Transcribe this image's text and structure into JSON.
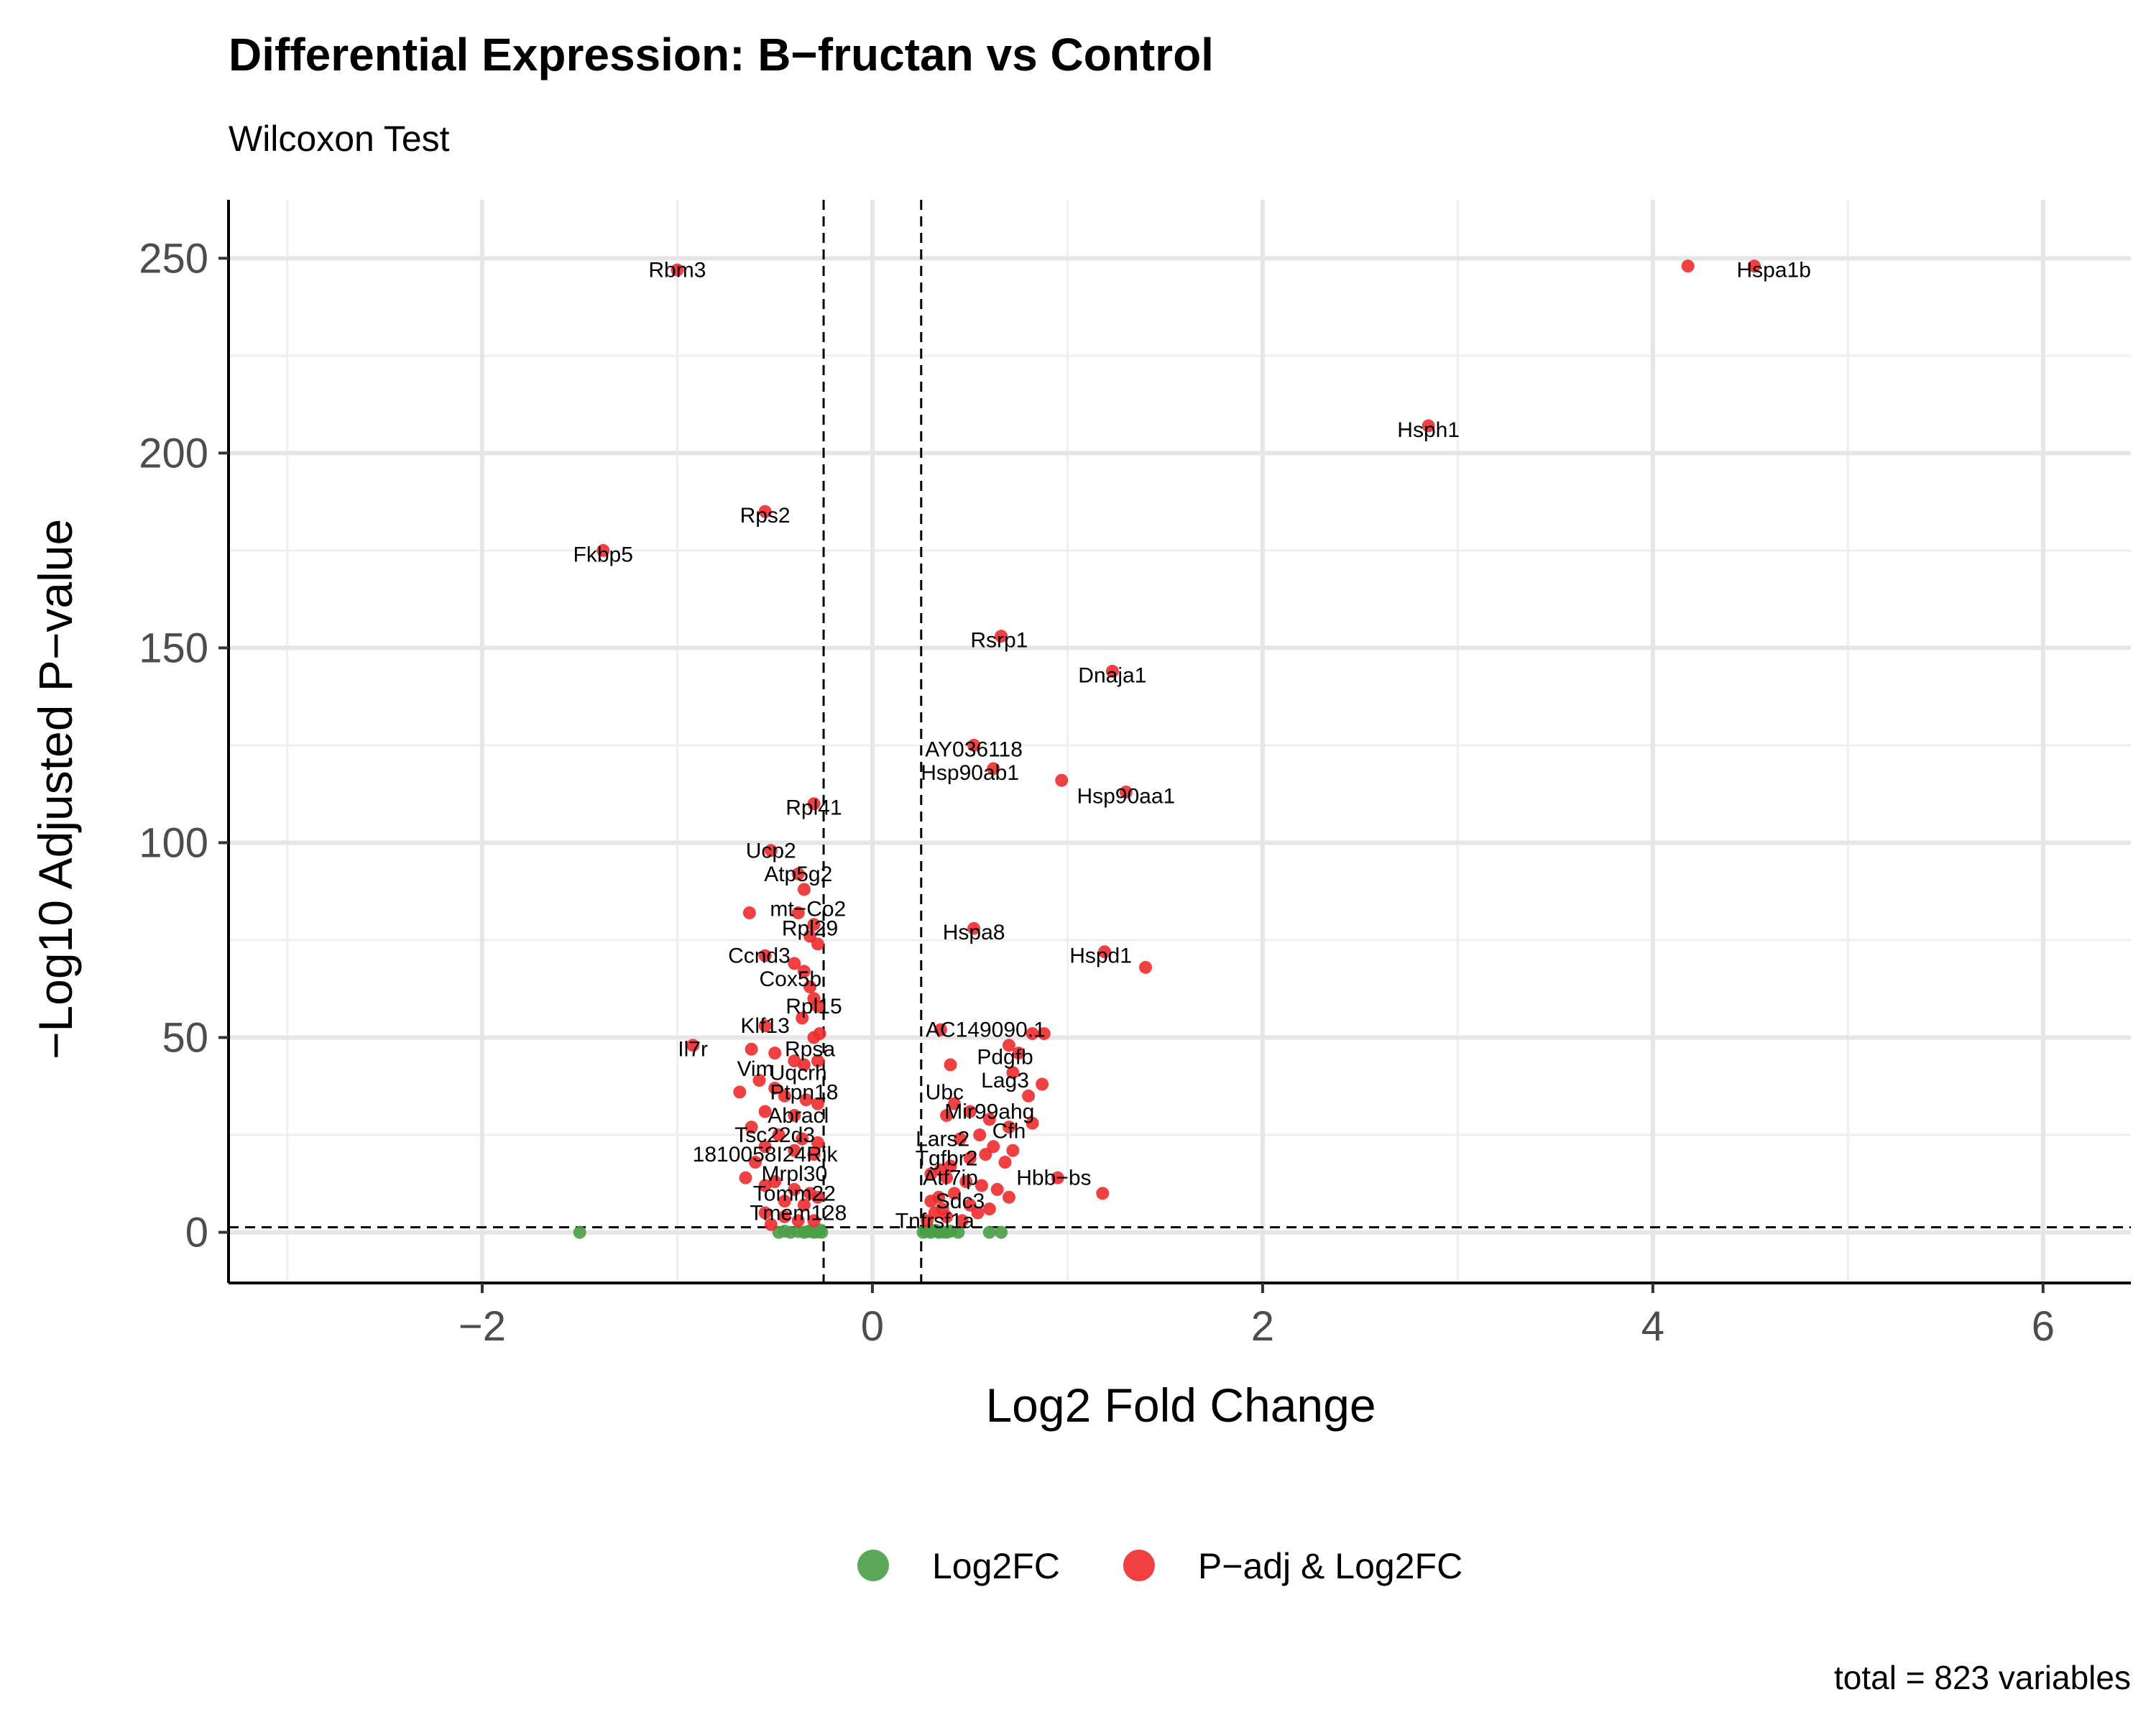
{
  "chart_data": {
    "type": "scatter",
    "title": "Differential Expression: B−fructan vs Control",
    "subtitle": "Wilcoxon Test",
    "xlabel": "Log2 Fold Change",
    "ylabel": "−Log10 Adjusted P−value",
    "xlim": [
      -3.3,
      6.45
    ],
    "ylim": [
      -13,
      265
    ],
    "x_ticks": [
      -2,
      0,
      2,
      4,
      6
    ],
    "x_tick_labels": [
      "−2",
      "0",
      "2",
      "4",
      "6"
    ],
    "y_ticks": [
      0,
      50,
      100,
      150,
      200,
      250
    ],
    "y_tick_labels": [
      "0",
      "50",
      "100",
      "150",
      "200",
      "250"
    ],
    "thresholds": {
      "fc_low": -0.25,
      "fc_high": 0.25,
      "padj_line": 1.3
    },
    "grid": true,
    "legend_position": "bottom",
    "caption": "total = 823 variables",
    "series": [
      {
        "name": "Log2FC",
        "color": "#4a9e47",
        "points": [
          [
            -1.5,
            0
          ],
          [
            -0.48,
            0
          ],
          [
            -0.45,
            0.3
          ],
          [
            -0.42,
            0
          ],
          [
            -0.38,
            0.2
          ],
          [
            -0.35,
            0
          ],
          [
            -0.32,
            0.4
          ],
          [
            -0.3,
            0
          ],
          [
            -0.28,
            0.1
          ],
          [
            -0.26,
            0
          ],
          [
            -0.27,
            0.6
          ],
          [
            -0.33,
            0.2
          ],
          [
            0.26,
            0
          ],
          [
            0.28,
            0.2
          ],
          [
            0.3,
            0
          ],
          [
            0.32,
            0.5
          ],
          [
            0.34,
            0
          ],
          [
            0.36,
            0.1
          ],
          [
            0.38,
            0
          ],
          [
            0.4,
            0.3
          ],
          [
            0.29,
            0.8
          ],
          [
            0.33,
            0.4
          ],
          [
            0.44,
            0
          ],
          [
            0.6,
            0
          ],
          [
            0.66,
            0
          ]
        ]
      },
      {
        "name": "P−adj & Log2FC",
        "color": "#f02b2e",
        "points": [
          [
            -1.0,
            247
          ],
          [
            4.18,
            248
          ],
          [
            4.52,
            248
          ],
          [
            2.85,
            207
          ],
          [
            -0.55,
            185
          ],
          [
            -1.38,
            175
          ],
          [
            0.66,
            153
          ],
          [
            1.23,
            144
          ],
          [
            0.52,
            125
          ],
          [
            0.97,
            116
          ],
          [
            1.3,
            113
          ],
          [
            0.62,
            119
          ],
          [
            -0.3,
            110
          ],
          [
            -0.52,
            98
          ],
          [
            -0.38,
            92
          ],
          [
            -0.35,
            88
          ],
          [
            -0.63,
            82
          ],
          [
            -0.38,
            82
          ],
          [
            -0.3,
            79
          ],
          [
            -0.32,
            76
          ],
          [
            -0.28,
            74
          ],
          [
            0.52,
            78
          ],
          [
            1.19,
            72
          ],
          [
            1.4,
            68
          ],
          [
            -0.55,
            71
          ],
          [
            -0.4,
            69
          ],
          [
            -0.35,
            67
          ],
          [
            -0.32,
            63
          ],
          [
            -0.3,
            60
          ],
          [
            -0.28,
            58
          ],
          [
            -0.36,
            55
          ],
          [
            -0.55,
            53
          ],
          [
            -0.3,
            50
          ],
          [
            -0.27,
            51
          ],
          [
            -0.92,
            48
          ],
          [
            -0.62,
            47
          ],
          [
            -0.5,
            46
          ],
          [
            -0.4,
            44
          ],
          [
            -0.35,
            43
          ],
          [
            -0.28,
            44
          ],
          [
            0.35,
            52
          ],
          [
            0.82,
            51
          ],
          [
            0.88,
            51
          ],
          [
            0.7,
            48
          ],
          [
            0.75,
            46
          ],
          [
            0.4,
            43
          ],
          [
            0.72,
            41
          ],
          [
            0.87,
            38
          ],
          [
            -0.58,
            39
          ],
          [
            -0.5,
            37
          ],
          [
            -0.68,
            36
          ],
          [
            -0.45,
            35
          ],
          [
            -0.34,
            34
          ],
          [
            -0.28,
            33
          ],
          [
            -0.55,
            31
          ],
          [
            -0.4,
            30
          ],
          [
            0.42,
            33
          ],
          [
            0.5,
            31
          ],
          [
            0.8,
            35
          ],
          [
            0.38,
            30
          ],
          [
            0.6,
            29
          ],
          [
            0.82,
            28
          ],
          [
            0.7,
            27
          ],
          [
            0.55,
            25
          ],
          [
            -0.62,
            27
          ],
          [
            -0.48,
            25
          ],
          [
            -0.36,
            24
          ],
          [
            -0.28,
            23
          ],
          [
            -0.55,
            22
          ],
          [
            -0.4,
            21
          ],
          [
            -0.3,
            20
          ],
          [
            -0.6,
            18
          ],
          [
            0.45,
            24
          ],
          [
            0.62,
            22
          ],
          [
            0.72,
            21
          ],
          [
            0.58,
            20
          ],
          [
            0.5,
            19
          ],
          [
            0.68,
            18
          ],
          [
            0.4,
            17
          ],
          [
            0.35,
            16
          ],
          [
            -0.65,
            14
          ],
          [
            -0.5,
            13
          ],
          [
            -0.55,
            12
          ],
          [
            -0.4,
            11
          ],
          [
            -0.32,
            10
          ],
          [
            -0.28,
            9
          ],
          [
            -0.45,
            8
          ],
          [
            -0.35,
            7
          ],
          [
            0.3,
            15
          ],
          [
            0.38,
            14
          ],
          [
            0.48,
            13
          ],
          [
            0.56,
            12
          ],
          [
            0.64,
            11
          ],
          [
            0.42,
            10
          ],
          [
            0.34,
            9
          ],
          [
            0.3,
            8
          ],
          [
            0.95,
            14
          ],
          [
            1.18,
            10
          ],
          [
            0.7,
            9
          ],
          [
            -0.55,
            5
          ],
          [
            -0.45,
            4
          ],
          [
            -0.38,
            3
          ],
          [
            -0.3,
            3
          ],
          [
            -0.52,
            2
          ],
          [
            0.32,
            5
          ],
          [
            0.38,
            4
          ],
          [
            0.46,
            3
          ],
          [
            0.54,
            5
          ],
          [
            0.36,
            6
          ],
          [
            0.28,
            3
          ],
          [
            0.5,
            7
          ],
          [
            0.6,
            6
          ]
        ]
      }
    ],
    "labels": [
      {
        "text": "Rbm3",
        "x": -1.0,
        "y": 247
      },
      {
        "text": "Hspa1b",
        "x": 4.62,
        "y": 247
      },
      {
        "text": "Hsph1",
        "x": 2.85,
        "y": 206
      },
      {
        "text": "Rps2",
        "x": -0.55,
        "y": 184
      },
      {
        "text": "Fkbp5",
        "x": -1.38,
        "y": 174
      },
      {
        "text": "Rsrp1",
        "x": 0.65,
        "y": 152
      },
      {
        "text": "Dnaja1",
        "x": 1.23,
        "y": 143
      },
      {
        "text": "AY036118",
        "x": 0.52,
        "y": 124
      },
      {
        "text": "Hsp90ab1",
        "x": 0.5,
        "y": 118
      },
      {
        "text": "Hsp90aa1",
        "x": 1.3,
        "y": 112
      },
      {
        "text": "Rpl41",
        "x": -0.3,
        "y": 109
      },
      {
        "text": "Ucp2",
        "x": -0.52,
        "y": 98
      },
      {
        "text": "Atp5g2",
        "x": -0.38,
        "y": 92
      },
      {
        "text": "mt−Co2",
        "x": -0.33,
        "y": 83
      },
      {
        "text": "Rpl29",
        "x": -0.32,
        "y": 78
      },
      {
        "text": "Hspa8",
        "x": 0.52,
        "y": 77
      },
      {
        "text": "Hspd1",
        "x": 1.17,
        "y": 71
      },
      {
        "text": "Ccnd3",
        "x": -0.58,
        "y": 71
      },
      {
        "text": "Cox5b",
        "x": -0.42,
        "y": 65
      },
      {
        "text": "Rpl15",
        "x": -0.3,
        "y": 58
      },
      {
        "text": "Klf13",
        "x": -0.55,
        "y": 53
      },
      {
        "text": "AC149090.1",
        "x": 0.58,
        "y": 52
      },
      {
        "text": "Il7r",
        "x": -0.92,
        "y": 47
      },
      {
        "text": "Rpsa",
        "x": -0.32,
        "y": 47
      },
      {
        "text": "Pdgfb",
        "x": 0.68,
        "y": 45
      },
      {
        "text": "Vim",
        "x": -0.6,
        "y": 42
      },
      {
        "text": "Uqcrh",
        "x": -0.38,
        "y": 41
      },
      {
        "text": "Lag3",
        "x": 0.68,
        "y": 39
      },
      {
        "text": "Ubc",
        "x": 0.37,
        "y": 36
      },
      {
        "text": "Ptpn18",
        "x": -0.35,
        "y": 36
      },
      {
        "text": "Mir99ahg",
        "x": 0.6,
        "y": 31
      },
      {
        "text": "Abracl",
        "x": -0.38,
        "y": 30
      },
      {
        "text": "Tsc22d3",
        "x": -0.5,
        "y": 25
      },
      {
        "text": "Cfh",
        "x": 0.7,
        "y": 26
      },
      {
        "text": "Lars2",
        "x": 0.36,
        "y": 24
      },
      {
        "text": "1810058I24Rik",
        "x": -0.55,
        "y": 20
      },
      {
        "text": "Tgfbr2",
        "x": 0.38,
        "y": 19
      },
      {
        "text": "Mrpl30",
        "x": -0.4,
        "y": 15
      },
      {
        "text": "Atf7ip",
        "x": 0.4,
        "y": 14
      },
      {
        "text": "Hbb−bs",
        "x": 0.93,
        "y": 14
      },
      {
        "text": "Tomm22",
        "x": -0.4,
        "y": 10
      },
      {
        "text": "Sdc3",
        "x": 0.45,
        "y": 8
      },
      {
        "text": "Tmem128",
        "x": -0.38,
        "y": 5
      },
      {
        "text": "Tnfrsf1a",
        "x": 0.32,
        "y": 3
      }
    ]
  }
}
